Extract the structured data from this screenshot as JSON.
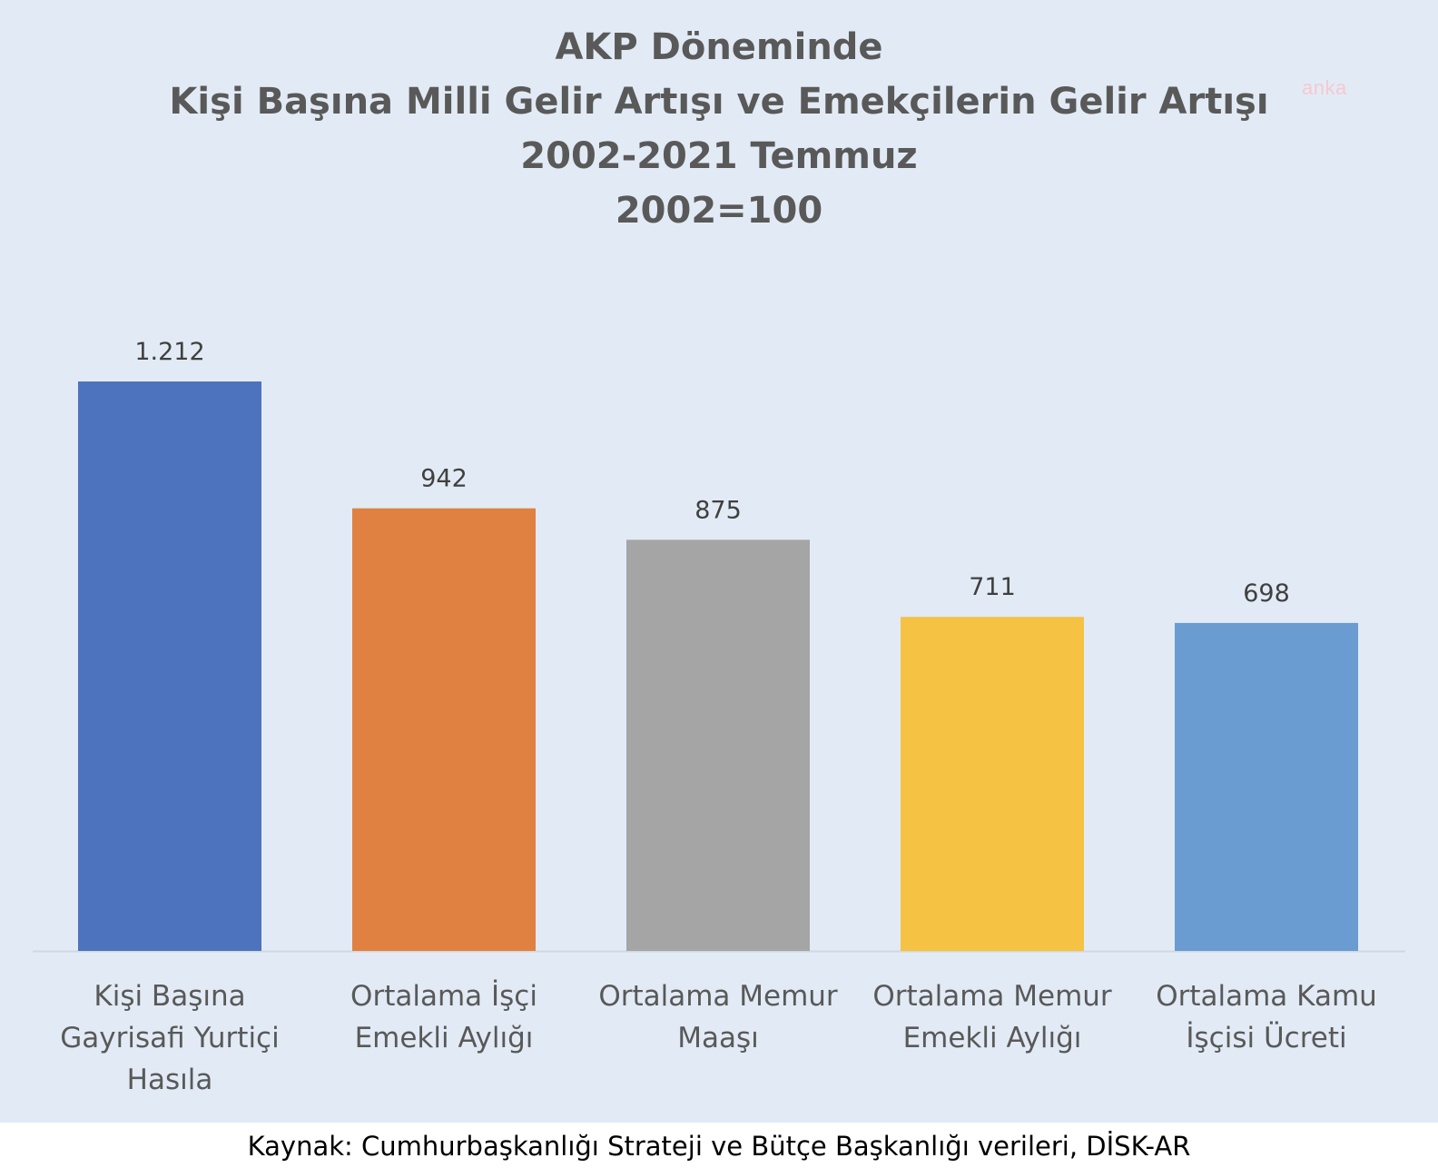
{
  "chart_data": {
    "type": "bar",
    "title_lines": [
      "AKP Döneminde",
      "Kişi Başına Milli Gelir Artışı ve Emekçilerin Gelir Artışı",
      "2002-2021 Temmuz",
      "2002=100"
    ],
    "categories": [
      [
        "Kişi Başına",
        "Gayrisafi Yurtiçi",
        "Hasıla"
      ],
      [
        "Ortalama İşçi",
        "Emekli Aylığı"
      ],
      [
        "Ortalama Memur",
        "Maaşı"
      ],
      [
        "Ortalama Memur",
        "Emekli Aylığı"
      ],
      [
        "Ortalama Kamu",
        "İşçisi Ücreti"
      ]
    ],
    "values": [
      1212,
      942,
      875,
      711,
      698
    ],
    "data_labels": [
      "1.212",
      "942",
      "875",
      "711",
      "698"
    ],
    "colors": [
      "#4e73be",
      "#e08142",
      "#a5a5a5",
      "#f5c243",
      "#6a9bd1"
    ],
    "ylim": [
      0,
      1212
    ],
    "grid": false,
    "xlabel": "",
    "ylabel": ""
  },
  "watermark": "anka",
  "source": "Kaynak: Cumhurbaşkanlığı Strateji ve Bütçe Başkanlığı verileri, DİSK-AR"
}
